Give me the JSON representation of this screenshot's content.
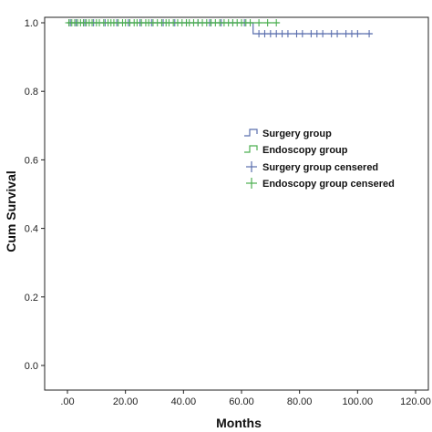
{
  "chart_data": {
    "type": "line",
    "subtype": "kaplan-meier",
    "title": "",
    "xlabel": "Months",
    "ylabel": "Cum Survival",
    "xlim": [
      0,
      120
    ],
    "ylim": [
      0,
      1
    ],
    "x_ticks": [
      ".00",
      "20.00",
      "40.00",
      "60.00",
      "80.00",
      "100.00",
      "120.00"
    ],
    "y_ticks": [
      "0.0",
      "0.2",
      "0.4",
      "0.6",
      "0.8",
      "1.0"
    ],
    "grid": false,
    "legend_position": "right",
    "series": [
      {
        "name": "Surgery group",
        "color": "#5b6fae",
        "steps": [
          [
            0,
            1.0
          ],
          [
            64,
            1.0
          ],
          [
            64,
            0.968
          ],
          [
            105,
            0.968
          ]
        ],
        "censored_label": "Surgery group censered",
        "censored": [
          [
            1,
            1.0
          ],
          [
            3,
            1.0
          ],
          [
            6,
            1.0
          ],
          [
            9,
            1.0
          ],
          [
            13,
            1.0
          ],
          [
            17,
            1.0
          ],
          [
            21,
            1.0
          ],
          [
            25,
            1.0
          ],
          [
            29,
            1.0
          ],
          [
            33,
            1.0
          ],
          [
            37,
            1.0
          ],
          [
            41,
            1.0
          ],
          [
            45,
            1.0
          ],
          [
            49,
            1.0
          ],
          [
            53,
            1.0
          ],
          [
            57,
            1.0
          ],
          [
            61,
            1.0
          ],
          [
            66,
            0.968
          ],
          [
            68,
            0.968
          ],
          [
            70,
            0.968
          ],
          [
            72,
            0.968
          ],
          [
            74,
            0.968
          ],
          [
            76,
            0.968
          ],
          [
            79,
            0.968
          ],
          [
            81,
            0.968
          ],
          [
            84,
            0.968
          ],
          [
            86,
            0.968
          ],
          [
            88,
            0.968
          ],
          [
            91,
            0.968
          ],
          [
            93,
            0.968
          ],
          [
            96,
            0.968
          ],
          [
            98,
            0.968
          ],
          [
            100,
            0.968
          ],
          [
            104,
            0.968
          ]
        ]
      },
      {
        "name": "Endoscopy group",
        "color": "#4caf50",
        "steps": [
          [
            0,
            1.0
          ],
          [
            73,
            1.0
          ]
        ],
        "censored_label": "Endoscopy group censered",
        "censored": [
          [
            0.5,
            1.0
          ],
          [
            1.5,
            1.0
          ],
          [
            2.5,
            1.0
          ],
          [
            3.5,
            1.0
          ],
          [
            4.5,
            1.0
          ],
          [
            5.5,
            1.0
          ],
          [
            6.5,
            1.0
          ],
          [
            7.5,
            1.0
          ],
          [
            8.5,
            1.0
          ],
          [
            10,
            1.0
          ],
          [
            11,
            1.0
          ],
          [
            12.5,
            1.0
          ],
          [
            14,
            1.0
          ],
          [
            15,
            1.0
          ],
          [
            16,
            1.0
          ],
          [
            17.5,
            1.0
          ],
          [
            19,
            1.0
          ],
          [
            20,
            1.0
          ],
          [
            21.5,
            1.0
          ],
          [
            23,
            1.0
          ],
          [
            24,
            1.0
          ],
          [
            25.5,
            1.0
          ],
          [
            27,
            1.0
          ],
          [
            28,
            1.0
          ],
          [
            29.5,
            1.0
          ],
          [
            31,
            1.0
          ],
          [
            32.5,
            1.0
          ],
          [
            34,
            1.0
          ],
          [
            35,
            1.0
          ],
          [
            36.5,
            1.0
          ],
          [
            38,
            1.0
          ],
          [
            39.5,
            1.0
          ],
          [
            41,
            1.0
          ],
          [
            42,
            1.0
          ],
          [
            43.5,
            1.0
          ],
          [
            45,
            1.0
          ],
          [
            46.5,
            1.0
          ],
          [
            48,
            1.0
          ],
          [
            49.5,
            1.0
          ],
          [
            51,
            1.0
          ],
          [
            52.5,
            1.0
          ],
          [
            54,
            1.0
          ],
          [
            55.5,
            1.0
          ],
          [
            57,
            1.0
          ],
          [
            58.5,
            1.0
          ],
          [
            60,
            1.0
          ],
          [
            61.5,
            1.0
          ],
          [
            63,
            1.0
          ],
          [
            66,
            1.0
          ],
          [
            69,
            1.0
          ],
          [
            72,
            1.0
          ]
        ]
      }
    ]
  }
}
